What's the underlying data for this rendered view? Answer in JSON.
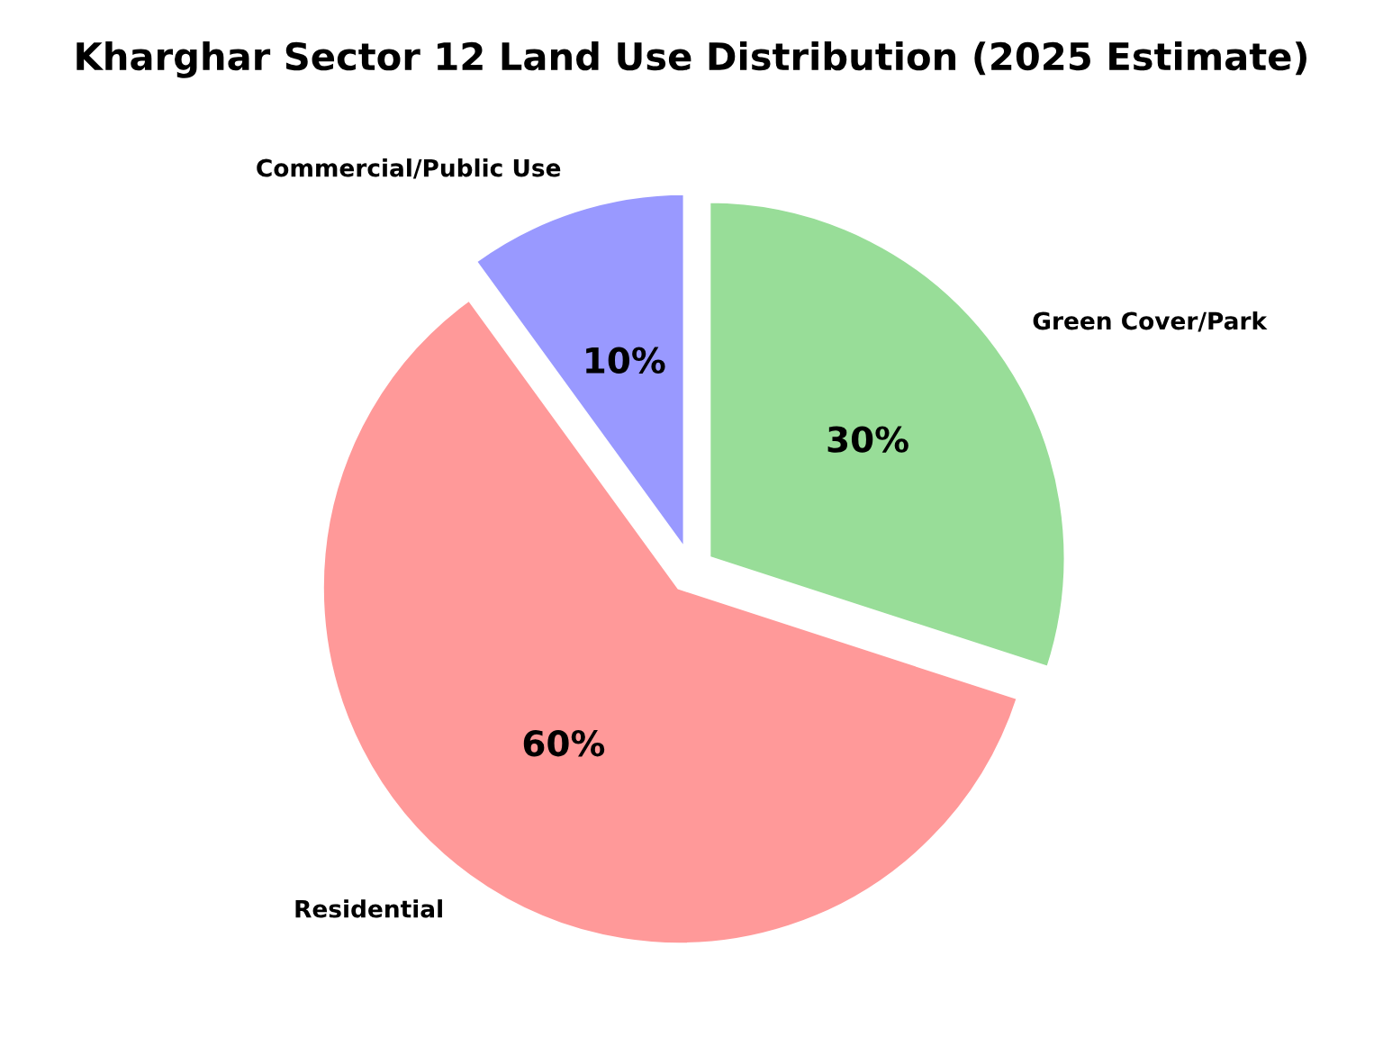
{
  "chart_data": {
    "type": "pie",
    "title": "Kharghar Sector 12 Land Use Distribution (2025 Estimate)",
    "categories": [
      "Green Cover/Park",
      "Residential",
      "Commercial/Public Use"
    ],
    "values": [
      30,
      60,
      10
    ],
    "colors": [
      "#98dd98",
      "#ff9999",
      "#9999ff"
    ],
    "value_labels": [
      "30%",
      "60%",
      "10%"
    ]
  }
}
